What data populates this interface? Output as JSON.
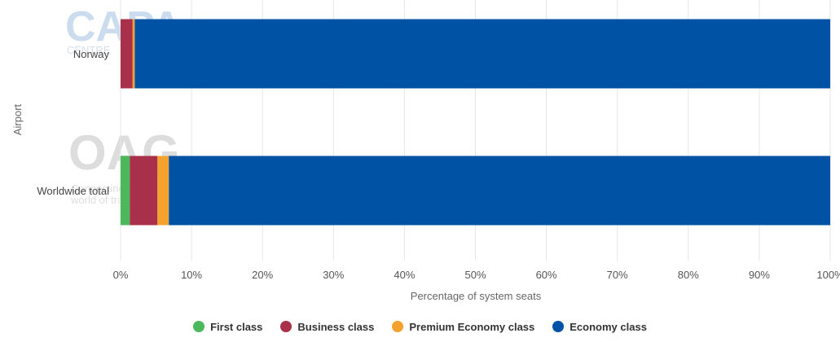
{
  "chart_data": {
    "type": "bar",
    "orientation": "horizontal",
    "stacked": true,
    "categories": [
      "Norway",
      "Worldwide total"
    ],
    "series": [
      {
        "name": "First class",
        "color": "#4cb85c",
        "values": [
          0,
          1.3
        ]
      },
      {
        "name": "Business class",
        "color": "#a8304a",
        "values": [
          1.7,
          3.9
        ]
      },
      {
        "name": "Premium Economy class",
        "color": "#f4a22d",
        "values": [
          0.3,
          1.6
        ]
      },
      {
        "name": "Economy class",
        "color": "#0052a5",
        "values": [
          98.0,
          93.2
        ]
      }
    ],
    "xlabel": "Percentage of system seats",
    "ylabel": "Airport",
    "xlim": [
      0,
      100
    ],
    "xticks": [
      "0%",
      "10%",
      "20%",
      "30%",
      "40%",
      "50%",
      "60%",
      "70%",
      "80%",
      "90%",
      "100%"
    ],
    "grid": true,
    "legend": "bottom-center"
  },
  "watermarks": {
    "capa": "CAPA",
    "capa_sub": "CENTRE",
    "oag": "OAG",
    "oag_sub1": "Connecting the",
    "oag_sub2": "world of travel"
  },
  "colors": {
    "grid": "#e6e6e6",
    "axis": "#cccccc"
  }
}
